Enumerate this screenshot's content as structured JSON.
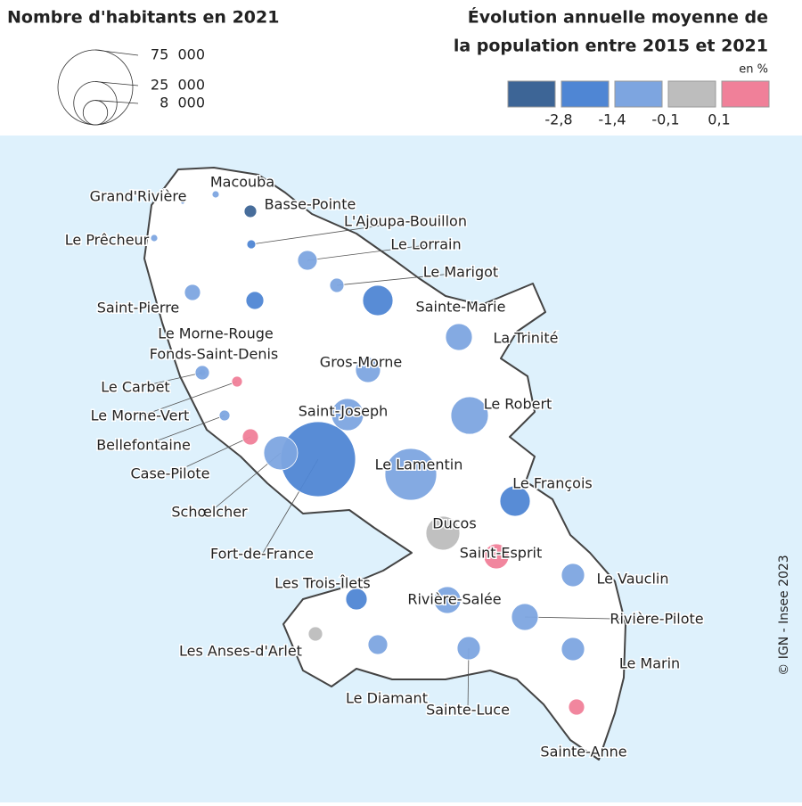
{
  "size_legend": {
    "title": "Nombre d'habitants en 2021",
    "sizes": [
      {
        "value": 75000,
        "label": "75  000"
      },
      {
        "value": 25000,
        "label": "25  000"
      },
      {
        "value": 8000,
        "label": "8  000"
      }
    ]
  },
  "color_legend": {
    "title_line1": "Évolution annuelle moyenne de",
    "title_line2": "la population entre 2015 et 2021",
    "unit": "en %",
    "colors": [
      "#3d6596",
      "#4f86d4",
      "#7da5e0",
      "#bdbdbd",
      "#f08099"
    ],
    "breaks": [
      {
        "value": -2.8,
        "label": "-2,8"
      },
      {
        "value": -1.4,
        "label": "-1,4"
      },
      {
        "value": -0.1,
        "label": "-0,1"
      },
      {
        "value": 0.1,
        "label": "0,1"
      }
    ]
  },
  "communes": [
    {
      "name": "Grand'Rivière",
      "population": 170,
      "class": 2
    },
    {
      "name": "Macouba",
      "population": 680,
      "class": 2
    },
    {
      "name": "Basse-Pointe",
      "population": 2080,
      "class": 0
    },
    {
      "name": "L'Ajoupa-Bouillon",
      "population": 1060,
      "class": 1
    },
    {
      "name": "Le Prêcheur",
      "population": 680,
      "class": 2
    },
    {
      "name": "Le Lorrain",
      "population": 5140,
      "class": 2
    },
    {
      "name": "Le Marigot",
      "population": 2720,
      "class": 2
    },
    {
      "name": "Saint-Pierre",
      "population": 3440,
      "class": 2
    },
    {
      "name": "Le Morne-Rouge",
      "population": 4250,
      "class": 1
    },
    {
      "name": "Sainte-Marie",
      "population": 12290,
      "class": 1
    },
    {
      "name": "La Trinité",
      "population": 9570,
      "class": 2
    },
    {
      "name": "Fonds-Saint-Denis",
      "population": 680,
      "class": 2
    },
    {
      "name": "Gros-Morne",
      "population": 8330,
      "class": 2
    },
    {
      "name": "Le Carbet",
      "population": 2720,
      "class": 2
    },
    {
      "name": "Le Morne-Vert",
      "population": 1530,
      "class": 4
    },
    {
      "name": "Saint-Joseph",
      "population": 13780,
      "class": 2
    },
    {
      "name": "Le Robert",
      "population": 18750,
      "class": 2
    },
    {
      "name": "Bellefontaine",
      "population": 1530,
      "class": 2
    },
    {
      "name": "Case-Pilote",
      "population": 3440,
      "class": 4
    },
    {
      "name": "Le Lamentin",
      "population": 35760,
      "class": 2
    },
    {
      "name": "Fort-de-France",
      "population": 75000,
      "class": 1
    },
    {
      "name": "Schœlcher",
      "population": 15350,
      "class": 2
    },
    {
      "name": "Le François",
      "population": 12290,
      "class": 1
    },
    {
      "name": "Ducos",
      "population": 15350,
      "class": 3
    },
    {
      "name": "Saint-Esprit",
      "population": 8330,
      "class": 4
    },
    {
      "name": "Le Vauclin",
      "population": 7190,
      "class": 2
    },
    {
      "name": "Les Trois-Îlets",
      "population": 6120,
      "class": 1
    },
    {
      "name": "Rivière-Salée",
      "population": 9570,
      "class": 2
    },
    {
      "name": "Rivière-Pilote",
      "population": 9570,
      "class": 2
    },
    {
      "name": "Les Anses-d'Arlet",
      "population": 2720,
      "class": 3
    },
    {
      "name": "Le Diamant",
      "population": 5140,
      "class": 2
    },
    {
      "name": "Sainte-Luce",
      "population": 7190,
      "class": 2
    },
    {
      "name": "Le Marin",
      "population": 7190,
      "class": 2
    },
    {
      "name": "Sainte-Anne",
      "population": 3440,
      "class": 4
    }
  ],
  "credit": "© IGN - Insee 2023"
}
